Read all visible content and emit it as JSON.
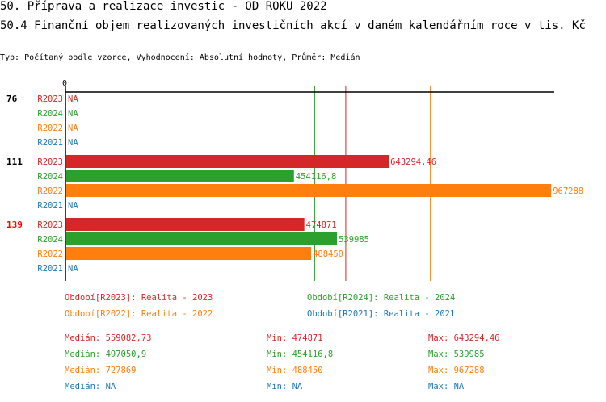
{
  "title": "50. Příprava a realizace investic - OD ROKU 2022",
  "subtitle": "50.4 Finanční objem realizovaných investičních akcí v daném kalendářním roce v tis. Kč",
  "info": "Typ: Počítaný podle vzorce, Vyhodnocení: Absolutní hodnoty, Průměr: Medián",
  "colors": {
    "R2023": "#d62728",
    "R2024": "#2ca02c",
    "R2022": "#ff7f0e",
    "R2021": "#1f77b4"
  },
  "chart_data": {
    "type": "bar",
    "orientation": "horizontal",
    "xlim": [
      0,
      975000
    ],
    "x_tick_labels": [
      "0"
    ],
    "groups": [
      {
        "label": "76",
        "highlight": false,
        "rows": [
          {
            "series": "R2023",
            "value": null,
            "label": "NA"
          },
          {
            "series": "R2024",
            "value": null,
            "label": "NA"
          },
          {
            "series": "R2022",
            "value": null,
            "label": "NA"
          },
          {
            "series": "R2021",
            "value": null,
            "label": "NA"
          }
        ]
      },
      {
        "label": "111",
        "highlight": false,
        "rows": [
          {
            "series": "R2023",
            "value": 643294.46,
            "label": "643294,46"
          },
          {
            "series": "R2024",
            "value": 454116.8,
            "label": "454116,8"
          },
          {
            "series": "R2022",
            "value": 967288,
            "label": "967288"
          },
          {
            "series": "R2021",
            "value": null,
            "label": "NA"
          }
        ]
      },
      {
        "label": "139",
        "highlight": true,
        "rows": [
          {
            "series": "R2023",
            "value": 474871,
            "label": "474871"
          },
          {
            "series": "R2024",
            "value": 539985,
            "label": "539985"
          },
          {
            "series": "R2022",
            "value": 488450,
            "label": "488450"
          },
          {
            "series": "R2021",
            "value": null,
            "label": "NA"
          }
        ]
      }
    ],
    "median_lines": [
      {
        "series": "R2024",
        "value": 497050.9
      },
      {
        "series": "R2023",
        "value": 559082.73
      },
      {
        "series": "R2022",
        "value": 727869
      }
    ],
    "legend": [
      {
        "series": "R2023",
        "text": "Období[R2023]: Realita - 2023"
      },
      {
        "series": "R2024",
        "text": "Období[R2024]: Realita - 2024"
      },
      {
        "series": "R2022",
        "text": "Období[R2022]: Realita - 2022"
      },
      {
        "series": "R2021",
        "text": "Období[R2021]: Realita - 2021"
      }
    ],
    "stats": [
      {
        "series": "R2023",
        "median": "Medián: 559082,73",
        "min": "Min: 474871",
        "max": "Max: 643294,46"
      },
      {
        "series": "R2024",
        "median": "Medián: 497050,9",
        "min": "Min: 454116,8",
        "max": "Max: 539985"
      },
      {
        "series": "R2022",
        "median": "Medián: 727869",
        "min": "Min: 488450",
        "max": "Max: 967288"
      },
      {
        "series": "R2021",
        "median": "Medián: NA",
        "min": "Min: NA",
        "max": "Max: NA"
      }
    ]
  }
}
